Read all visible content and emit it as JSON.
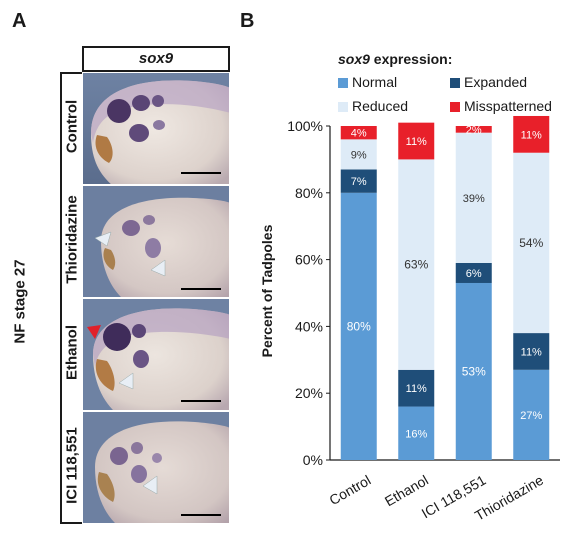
{
  "panel_a": {
    "letter": "A",
    "stage_label": "NF stage 27",
    "gene": "sox9",
    "conditions": [
      "Control",
      "Thioridazine",
      "Ethanol",
      "ICI 118,551"
    ]
  },
  "panel_b": {
    "letter": "B",
    "legend_gene": "sox9",
    "legend_suffix": " expression:",
    "legend": [
      "Normal",
      "Expanded",
      "Reduced",
      "Misspatterned"
    ]
  },
  "chart_data": {
    "type": "bar",
    "stacked": true,
    "categories": [
      "Control",
      "Ethanol",
      "ICI 118,551",
      "Thioridazine"
    ],
    "series": [
      {
        "name": "Normal",
        "color": "#5b9bd5",
        "values": [
          80,
          16,
          53,
          27
        ],
        "labels": [
          "80%",
          "16%",
          "53%",
          "27%"
        ]
      },
      {
        "name": "Expanded",
        "color": "#1f4e79",
        "values": [
          7,
          11,
          6,
          11
        ],
        "labels": [
          "7%",
          "11%",
          "6%",
          "11%"
        ]
      },
      {
        "name": "Reduced",
        "color": "#deebf7",
        "values": [
          9,
          63,
          39,
          54
        ],
        "labels": [
          "9%",
          "63%",
          "39%",
          "54%"
        ]
      },
      {
        "name": "Misspatterned",
        "color": "#e8202a",
        "values": [
          4,
          11,
          2,
          11
        ],
        "labels": [
          "4%",
          "11%",
          "2%",
          "11%"
        ]
      }
    ],
    "ylabel": "Percent of Tadpoles",
    "ylim": [
      0,
      100
    ],
    "yticks": [
      0,
      20,
      40,
      60,
      80,
      100
    ],
    "ytick_labels": [
      "0%",
      "20%",
      "40%",
      "60%",
      "80%",
      "100%"
    ],
    "grid": false,
    "legend_position": "top"
  }
}
